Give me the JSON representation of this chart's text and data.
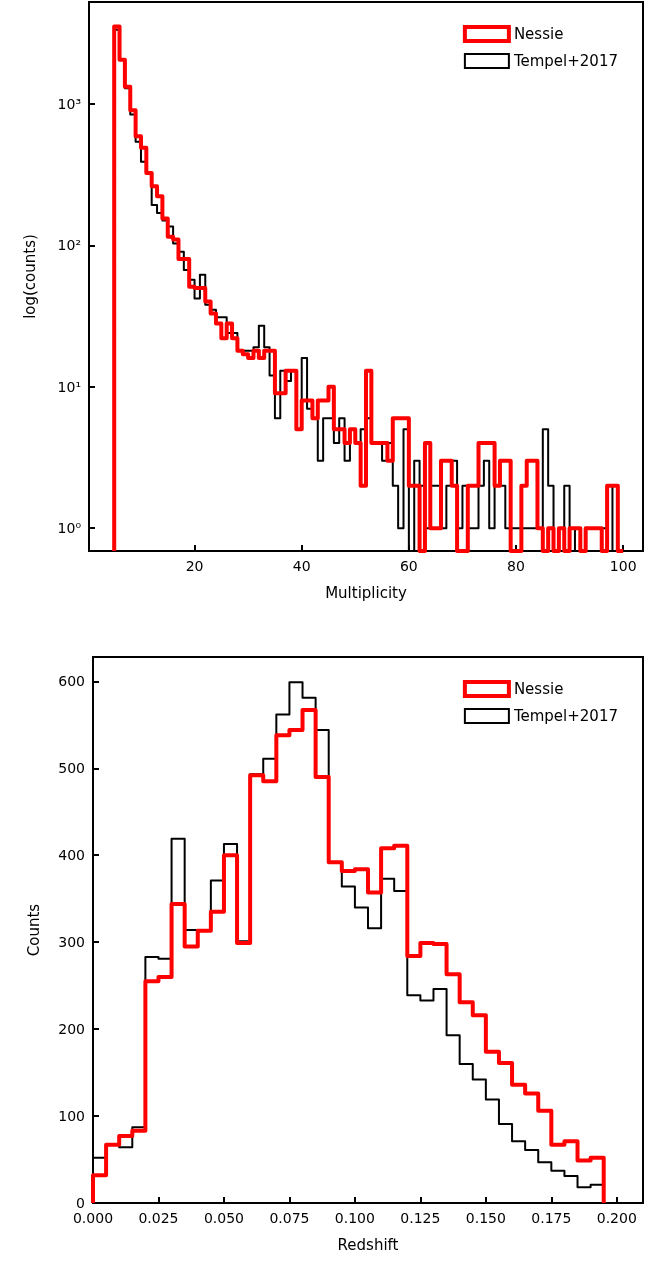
{
  "chart_data": [
    {
      "type": "histogram",
      "xlabel": "Multiplicity",
      "ylabel": "log(counts)",
      "log": "y",
      "legend": "top right",
      "bins": [
        5,
        6,
        7,
        8,
        9,
        10,
        11,
        12,
        13,
        14,
        15,
        16,
        17,
        18,
        19,
        20,
        21,
        22,
        23,
        24,
        25,
        26,
        27,
        28,
        29,
        30,
        31,
        32,
        33,
        34,
        35,
        36,
        37,
        38,
        39,
        40,
        41,
        42,
        43,
        44,
        45,
        46,
        47,
        48,
        49,
        50,
        51,
        52,
        53,
        54,
        55,
        56,
        57,
        58,
        59,
        60,
        61,
        62,
        63,
        64,
        65,
        66,
        67,
        68,
        69,
        70,
        71,
        72,
        73,
        74,
        75,
        76,
        77,
        78,
        79,
        80,
        81,
        82,
        83,
        84,
        85,
        86,
        87,
        88,
        89,
        90,
        91,
        92,
        93,
        94,
        95,
        96,
        97,
        98,
        99,
        100
      ],
      "xlim": [
        0.3,
        103.7
      ],
      "xticks": [
        20,
        40,
        60,
        80,
        100
      ],
      "ylim": [
        0.69,
        5250
      ],
      "yticks": [
        {
          "value": 1,
          "label": "10⁰"
        },
        {
          "value": 10,
          "label": "10¹"
        },
        {
          "value": 100,
          "label": "10²"
        },
        {
          "value": 1000,
          "label": "10³"
        }
      ],
      "series": [
        {
          "name": "Nessie",
          "color": "#ff0000",
          "values": [
            3530,
            2050,
            1320,
            900,
            590,
            490,
            325,
            262,
            222,
            155,
            115,
            110,
            80,
            80,
            51,
            50,
            50,
            40,
            33,
            28,
            22,
            28,
            22,
            18,
            17,
            16,
            18,
            16,
            18,
            18,
            9,
            9,
            13,
            13,
            5,
            8,
            8,
            6,
            8,
            8,
            10,
            5,
            5,
            4,
            5,
            4,
            2,
            13,
            4,
            4,
            4,
            3,
            6,
            6,
            6,
            2,
            2,
            null,
            4,
            1,
            1,
            3,
            3,
            2,
            null,
            null,
            2,
            2,
            4,
            4,
            4,
            2,
            3,
            3,
            null,
            null,
            2,
            3,
            3,
            1,
            null,
            1,
            null,
            1,
            null,
            1,
            1,
            null,
            1,
            1,
            1,
            null,
            2,
            2,
            null
          ]
        },
        {
          "name": "Tempel+2017",
          "color": "#000000",
          "values": [
            3340,
            2050,
            1290,
            840,
            540,
            390,
            325,
            193,
            169,
            150,
            136,
            103,
            90,
            67,
            57,
            42,
            62,
            38,
            35,
            31,
            31,
            24,
            24,
            18,
            18,
            18,
            19,
            27,
            19,
            12,
            6,
            13,
            11,
            13,
            5,
            16,
            7,
            6,
            3,
            6,
            6,
            4,
            6,
            3,
            5,
            4,
            5,
            6,
            4,
            4,
            3,
            4,
            2,
            1,
            5,
            null,
            3,
            2,
            1,
            2,
            2,
            1,
            2,
            3,
            1,
            2,
            1,
            1,
            2,
            3,
            1,
            2,
            2,
            1,
            1,
            1,
            1,
            1,
            1,
            1,
            5,
            2,
            null,
            1,
            2,
            1,
            null,
            null,
            1,
            1,
            1,
            1,
            null,
            2,
            null
          ]
        }
      ]
    },
    {
      "type": "histogram",
      "xlabel": "Redshift",
      "ylabel": "Counts",
      "legend": "top right",
      "bins": [
        0,
        0.005,
        0.01,
        0.015,
        0.02,
        0.025,
        0.03,
        0.035,
        0.04,
        0.045,
        0.05,
        0.055,
        0.06,
        0.065,
        0.07,
        0.075,
        0.08,
        0.085,
        0.09,
        0.095,
        0.1,
        0.105,
        0.11,
        0.115,
        0.12,
        0.125,
        0.13,
        0.135,
        0.14,
        0.145,
        0.15,
        0.155,
        0.16,
        0.165,
        0.17,
        0.175,
        0.18,
        0.185,
        0.19,
        0.195
      ],
      "xlim": [
        0,
        0.21
      ],
      "xticks": [
        {
          "value": 0,
          "label": "0.000"
        },
        {
          "value": 0.025,
          "label": "0.025"
        },
        {
          "value": 0.05,
          "label": "0.050"
        },
        {
          "value": 0.075,
          "label": "0.075"
        },
        {
          "value": 0.1,
          "label": "0.100"
        },
        {
          "value": 0.125,
          "label": "0.125"
        },
        {
          "value": 0.15,
          "label": "0.150"
        },
        {
          "value": 0.175,
          "label": "0.175"
        },
        {
          "value": 0.2,
          "label": "0.200"
        }
      ],
      "ylim": [
        0,
        628
      ],
      "yticks": [
        0,
        100,
        200,
        300,
        400,
        500,
        600
      ],
      "series": [
        {
          "name": "Nessie",
          "color": "#ff0000",
          "values": [
            32,
            67,
            77,
            83,
            255,
            260,
            344,
            295,
            313,
            335,
            400,
            299,
            492,
            485,
            538,
            544,
            567,
            490,
            392,
            382,
            384,
            357,
            408,
            411,
            284,
            299,
            298,
            263,
            231,
            216,
            174,
            161,
            136,
            126,
            106,
            67,
            71,
            49,
            52
          ]
        },
        {
          "name": "Tempel+2017",
          "color": "#000000",
          "values": [
            52,
            67,
            64,
            87,
            283,
            281,
            419,
            314,
            313,
            371,
            413,
            301,
            493,
            511,
            562,
            599,
            581,
            544,
            392,
            364,
            340,
            316,
            373,
            359,
            239,
            233,
            246,
            193,
            160,
            142,
            119,
            91,
            71,
            61,
            47,
            37,
            31,
            18,
            21
          ]
        }
      ]
    }
  ]
}
